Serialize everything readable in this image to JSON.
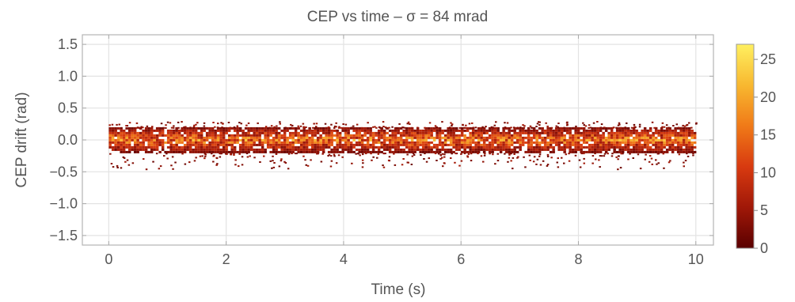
{
  "chart_data": {
    "type": "heatmap",
    "title": "CEP vs time – σ = 84 mrad",
    "xlabel": "Time (s)",
    "ylabel": "CEP drift (rad)",
    "xlim": [
      -0.45,
      10.3
    ],
    "ylim": [
      -1.65,
      1.65
    ],
    "x_ticks": [
      0,
      2,
      4,
      6,
      8,
      10
    ],
    "y_ticks": [
      -1.5,
      -1.0,
      -0.5,
      0.0,
      0.5,
      1.0,
      1.5
    ],
    "x_tick_labels": [
      "0",
      "2",
      "4",
      "6",
      "8",
      "10"
    ],
    "y_tick_labels": [
      "−1.5",
      "−1.0",
      "−0.5",
      "0.0",
      "0.5",
      "1.0",
      "1.5"
    ],
    "grid": true,
    "colorbar": {
      "min": 0,
      "max": 27,
      "ticks": [
        0,
        5,
        10,
        15,
        20,
        25
      ],
      "tick_labels": [
        "0",
        "5",
        "10",
        "15",
        "20",
        "25"
      ],
      "colors": [
        "#5a0000",
        "#a01808",
        "#d83a10",
        "#f07a18",
        "#f8b830",
        "#fff060"
      ]
    },
    "data_summary": {
      "time_range": [
        0,
        10
      ],
      "cep_center": 0.0,
      "cep_sigma": 0.084,
      "core_band": [
        -0.2,
        0.2
      ],
      "outlier_range": [
        -0.45,
        0.3
      ]
    }
  }
}
